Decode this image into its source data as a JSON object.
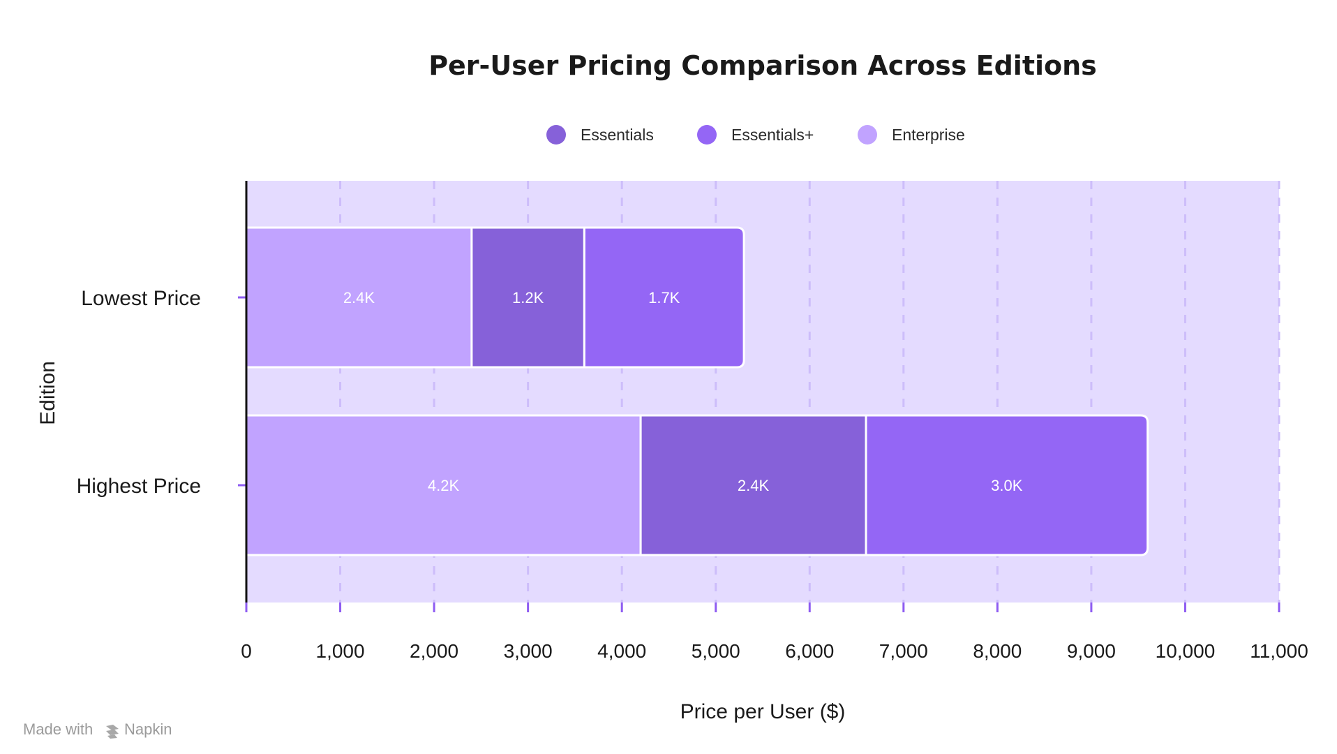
{
  "chart_data": {
    "type": "bar",
    "orientation": "horizontal",
    "stacked": true,
    "title": "Per-User Pricing Comparison Across Editions",
    "xlabel": "Price per User ($)",
    "ylabel": "Edition",
    "xlim": [
      0,
      11000
    ],
    "xticks": [
      0,
      1000,
      2000,
      3000,
      4000,
      5000,
      6000,
      7000,
      8000,
      9000,
      10000,
      11000
    ],
    "xtick_labels": [
      "0",
      "1,000",
      "2,000",
      "3,000",
      "4,000",
      "5,000",
      "6,000",
      "7,000",
      "8,000",
      "9,000",
      "10,000",
      "11,000"
    ],
    "grid": true,
    "legend_position": "top-center",
    "categories": [
      "Lowest Price",
      "Highest Price"
    ],
    "series": [
      {
        "name": "Enterprise",
        "color": "#c1a3ff",
        "values": [
          2400,
          4200
        ],
        "labels": [
          "2.4K",
          "4.2K"
        ]
      },
      {
        "name": "Essentials",
        "color": "#8661d9",
        "values": [
          1200,
          2400
        ],
        "labels": [
          "1.2K",
          "2.4K"
        ]
      },
      {
        "name": "Essentials+",
        "color": "#9466f5",
        "values": [
          1700,
          3000
        ],
        "labels": [
          "1.7K",
          "3.0K"
        ]
      }
    ],
    "legend_order": [
      "Essentials",
      "Essentials+",
      "Enterprise"
    ]
  },
  "colors": {
    "plot_background": "#e4dbff",
    "grid": "#cdbdfa",
    "tick_accent": "#8e5cf2",
    "axis_line": "#111111"
  },
  "watermark": {
    "prefix": "Made with",
    "brand": "Napkin",
    "icon": "napkin-logo-icon"
  }
}
